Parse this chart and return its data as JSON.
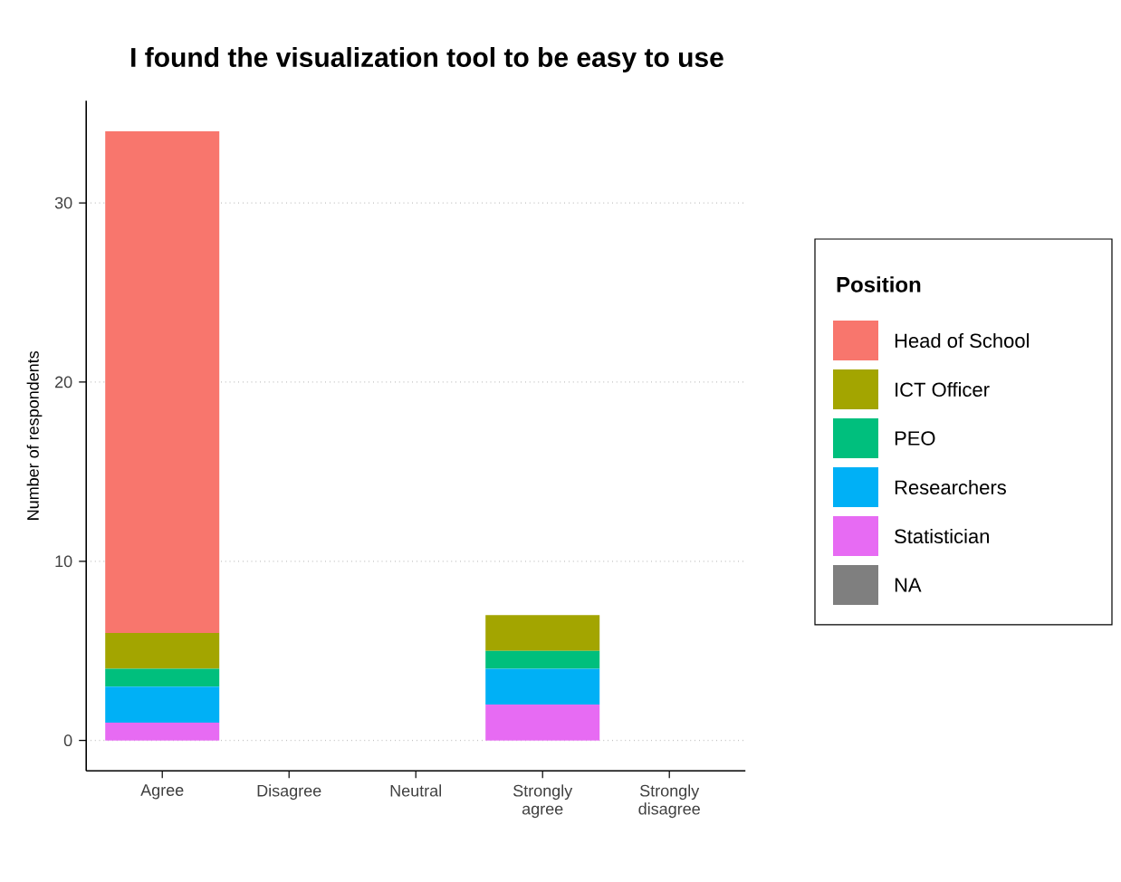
{
  "chart_data": {
    "type": "bar",
    "stacked": true,
    "title": "I found the visualization tool to be easy to use",
    "ylabel": "Number of respondents",
    "legend_title": "Position",
    "legend": "right",
    "grid": "y",
    "categories": [
      "Agree",
      "Disagree",
      "Neutral",
      "Strongly agree",
      "Strongly disagree"
    ],
    "ylim": [
      -1.7,
      35.7
    ],
    "yticks": [
      0,
      10,
      20,
      30
    ],
    "series": [
      {
        "name": "NA",
        "color": "#7f7f7f",
        "values": [
          0,
          0,
          0,
          0,
          0
        ]
      },
      {
        "name": "Statistician",
        "color": "#e76bf3",
        "values": [
          1,
          0,
          0,
          2,
          0
        ]
      },
      {
        "name": "Researchers",
        "color": "#00b0f6",
        "values": [
          2,
          0,
          0,
          2,
          0
        ]
      },
      {
        "name": "PEO",
        "color": "#00bf7d",
        "values": [
          1,
          0,
          0,
          1,
          0
        ]
      },
      {
        "name": "ICT Officer",
        "color": "#a3a500",
        "values": [
          2,
          0,
          0,
          2,
          0
        ]
      },
      {
        "name": "Head of School",
        "color": "#f8766d",
        "values": [
          28,
          0,
          0,
          0,
          0
        ]
      }
    ]
  }
}
